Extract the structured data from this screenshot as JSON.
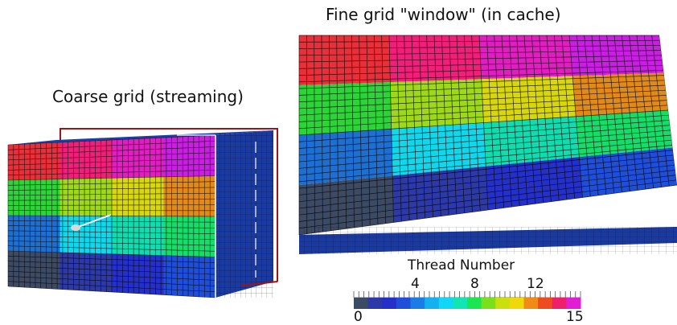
{
  "labels": {
    "fine_grid": "Fine grid \"window\" (in cache)",
    "coarse_grid": "Coarse grid (streaming)"
  },
  "colorbar": {
    "title": "Thread Number",
    "min_label": "0",
    "max_label": "15",
    "tick_labels": [
      "4",
      "8",
      "12"
    ],
    "tick_values": [
      4,
      8,
      12
    ],
    "range": [
      0,
      15
    ],
    "colors": [
      "#3d4a63",
      "#2c39a6",
      "#2530c8",
      "#1f4ed8",
      "#1a7de6",
      "#14b0f0",
      "#10d7f5",
      "#11e6b3",
      "#19e650",
      "#7ae01a",
      "#c9e00c",
      "#f0d90b",
      "#f08c16",
      "#f04a20",
      "#f01f6a",
      "#e01fd4"
    ]
  },
  "thread_colors": {
    "t0": "#3d4a63",
    "t1": "#2c39a6",
    "t2": "#2530c8",
    "t3": "#1f4ed8",
    "t4": "#1a7de6",
    "t5": "#14b0f0",
    "t6": "#10d7f5",
    "t7": "#11e6b3",
    "t8": "#19e650",
    "t9": "#7ae01a",
    "t10": "#c9e00c",
    "t11": "#f0d90b",
    "t12": "#f08c16",
    "t13": "#f04a20",
    "t14": "#f01f6a",
    "t15": "#e01fd4"
  },
  "fine_grid_blocks": [
    [
      "#e8303a",
      "#f0207a",
      "#e01fc0",
      "#c81fe0"
    ],
    [
      "#2ed33a",
      "#9ed81a",
      "#d8d60f",
      "#e08a1c"
    ],
    [
      "#1f6fd0",
      "#12d6ea",
      "#10dcb0",
      "#18dc6a"
    ],
    [
      "#3d4a63",
      "#2c39a6",
      "#2530c8",
      "#1f4ed8"
    ]
  ],
  "coarse_grid_blocks": [
    [
      "#e8303a",
      "#f0207a",
      "#e01fc0",
      "#c81fe0"
    ],
    [
      "#2ed33a",
      "#9ed81a",
      "#d8d60f",
      "#e08a1c"
    ],
    [
      "#1f6fd0",
      "#12d6ea",
      "#10dcb0",
      "#18dc6a"
    ],
    [
      "#3d4a63",
      "#2c39a6",
      "#2530c8",
      "#1f4ed8"
    ]
  ],
  "side_color": "#1a3aa0",
  "top_color": "#1c3fa5",
  "window_frame_color": "#a01414"
}
